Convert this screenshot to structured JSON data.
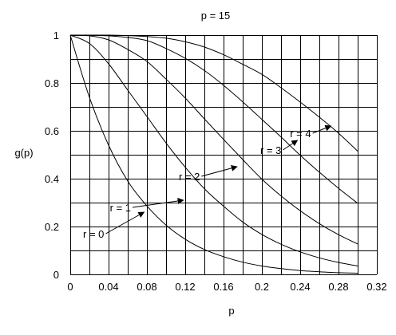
{
  "chart_data": {
    "type": "line",
    "title": "p = 15",
    "xlabel": "p",
    "ylabel": "g(p)",
    "xlim": [
      0,
      0.32
    ],
    "ylim": [
      0,
      1
    ],
    "x_ticks": [
      0,
      0.04,
      0.08,
      0.12,
      0.16,
      0.2,
      0.24,
      0.28,
      0.32
    ],
    "x_tick_labels": [
      "0",
      "0.04",
      "0.08",
      "0.12",
      "0.16",
      "0.2",
      "0.24",
      "0.28",
      "0.32"
    ],
    "y_ticks": [
      0,
      0.2,
      0.4,
      0.6,
      0.8,
      1
    ],
    "y_tick_labels": [
      "0",
      "0.2",
      "0.4",
      "0.6",
      "0.8",
      "1"
    ],
    "x_minor_step": 0.02,
    "y_minor_step": 0.1,
    "grid": true,
    "series": [
      {
        "name": "r = 0",
        "x": [
          0,
          0.02,
          0.04,
          0.06,
          0.08,
          0.1,
          0.12,
          0.14,
          0.16,
          0.18,
          0.2,
          0.22,
          0.24,
          0.26,
          0.28,
          0.3
        ],
        "y": [
          1.0,
          0.74,
          0.54,
          0.39,
          0.286,
          0.206,
          0.147,
          0.104,
          0.074,
          0.051,
          0.035,
          0.024,
          0.016,
          0.011,
          0.007,
          0.005
        ]
      },
      {
        "name": "r = 1",
        "x": [
          0,
          0.02,
          0.04,
          0.06,
          0.08,
          0.1,
          0.12,
          0.14,
          0.16,
          0.18,
          0.2,
          0.22,
          0.24,
          0.26,
          0.28,
          0.3
        ],
        "y": [
          1.0,
          0.965,
          0.88,
          0.77,
          0.66,
          0.549,
          0.448,
          0.358,
          0.285,
          0.219,
          0.167,
          0.126,
          0.094,
          0.069,
          0.05,
          0.035
        ]
      },
      {
        "name": "r = 2",
        "x": [
          0,
          0.02,
          0.04,
          0.06,
          0.08,
          0.1,
          0.12,
          0.14,
          0.16,
          0.18,
          0.2,
          0.22,
          0.24,
          0.26,
          0.28,
          0.3
        ],
        "y": [
          1.0,
          0.997,
          0.98,
          0.94,
          0.89,
          0.816,
          0.737,
          0.65,
          0.564,
          0.48,
          0.398,
          0.328,
          0.266,
          0.212,
          0.166,
          0.127
        ]
      },
      {
        "name": "r = 3",
        "x": [
          0,
          0.02,
          0.04,
          0.06,
          0.08,
          0.1,
          0.12,
          0.14,
          0.16,
          0.18,
          0.2,
          0.22,
          0.24,
          0.26,
          0.28,
          0.3
        ],
        "y": [
          1.0,
          1.0,
          0.997,
          0.99,
          0.977,
          0.944,
          0.903,
          0.852,
          0.79,
          0.721,
          0.648,
          0.574,
          0.498,
          0.427,
          0.36,
          0.297
        ]
      },
      {
        "name": "r = 4",
        "x": [
          0,
          0.02,
          0.04,
          0.06,
          0.08,
          0.1,
          0.12,
          0.14,
          0.16,
          0.18,
          0.2,
          0.22,
          0.24,
          0.26,
          0.28,
          0.3
        ],
        "y": [
          1.0,
          1.0,
          1.0,
          0.998,
          0.994,
          0.987,
          0.972,
          0.95,
          0.918,
          0.878,
          0.836,
          0.78,
          0.72,
          0.657,
          0.59,
          0.515
        ]
      }
    ],
    "annotations": [
      {
        "text": "r = 0",
        "series": 0,
        "tail": [
          0.037,
          0.17
        ],
        "head": [
          0.077,
          0.26
        ]
      },
      {
        "text": "r = 1",
        "series": 1,
        "tail": [
          0.065,
          0.28
        ],
        "head": [
          0.118,
          0.31
        ]
      },
      {
        "text": "r = 2",
        "series": 2,
        "tail": [
          0.137,
          0.41
        ],
        "head": [
          0.174,
          0.45
        ]
      },
      {
        "text": "r = 3",
        "series": 3,
        "tail": [
          0.222,
          0.52
        ],
        "head": [
          0.237,
          0.56
        ]
      },
      {
        "text": "r = 4",
        "series": 4,
        "tail": [
          0.253,
          0.59
        ],
        "head": [
          0.272,
          0.62
        ]
      }
    ]
  }
}
